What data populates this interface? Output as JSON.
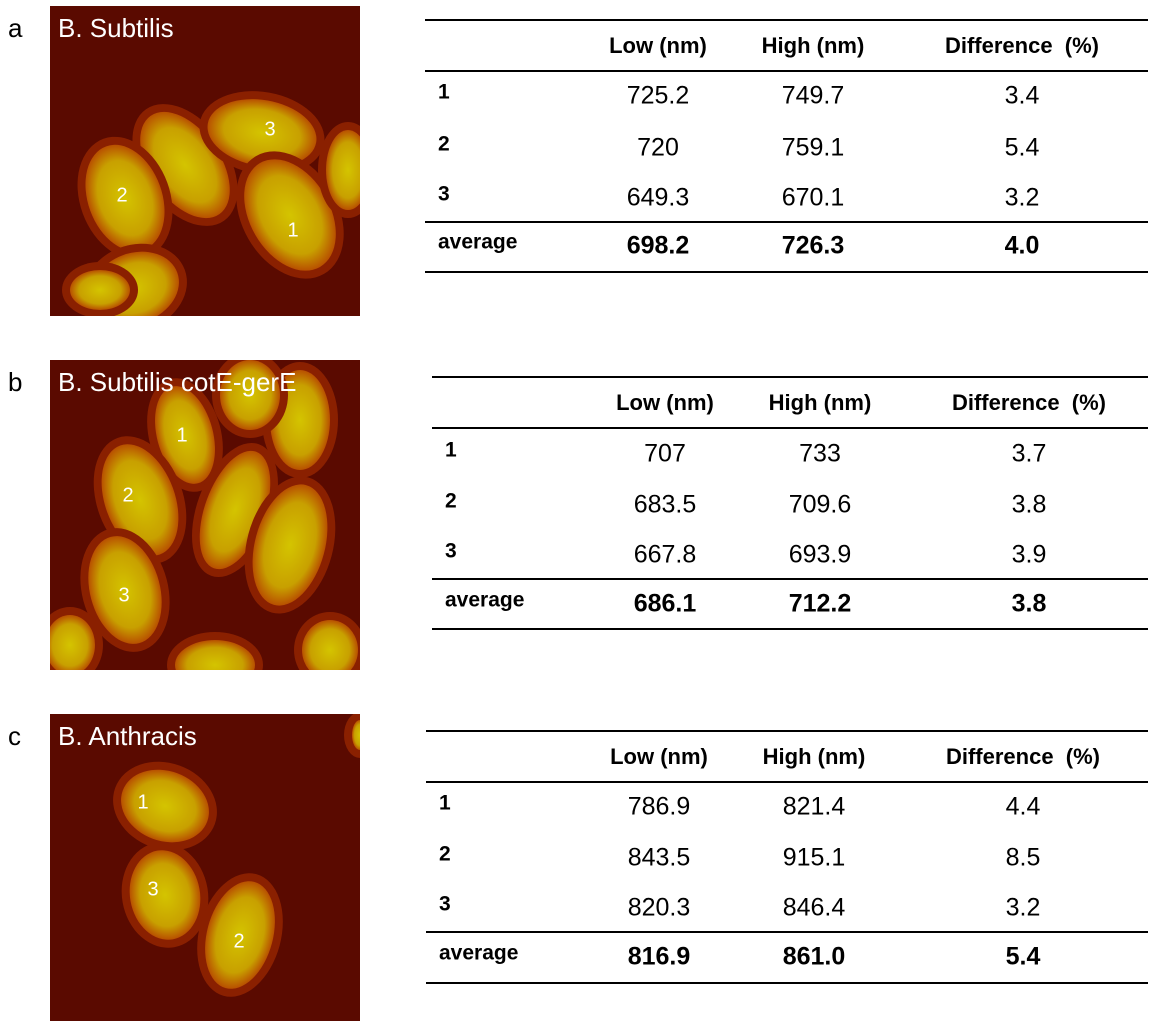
{
  "panels": [
    {
      "letter": "a",
      "title": "B. Subtilis",
      "spore_labels": [
        "3",
        "2",
        "1"
      ],
      "table": {
        "header": [
          "Low (nm)",
          "High (nm)",
          "Difference  (%)"
        ],
        "rows": [
          [
            "1",
            "725.2",
            "749.7",
            "3.4"
          ],
          [
            "2",
            "720",
            "759.1",
            "5.4"
          ],
          [
            "3",
            "649.3",
            "670.1",
            "3.2"
          ]
        ],
        "average": [
          "average",
          "698.2",
          "726.3",
          "4.0"
        ]
      }
    },
    {
      "letter": "b",
      "title": "B. Subtilis cotE-gerE",
      "spore_labels": [
        "1",
        "2",
        "3"
      ],
      "table": {
        "header": [
          "Low (nm)",
          "High (nm)",
          "Difference  (%)"
        ],
        "rows": [
          [
            "1",
            "707",
            "733",
            "3.7"
          ],
          [
            "2",
            "683.5",
            "709.6",
            "3.8"
          ],
          [
            "3",
            "667.8",
            "693.9",
            "3.9"
          ]
        ],
        "average": [
          "average",
          "686.1",
          "712.2",
          "3.8"
        ]
      }
    },
    {
      "letter": "c",
      "title": "B. Anthracis",
      "spore_labels": [
        "1",
        "3",
        "2"
      ],
      "table": {
        "header": [
          "Low (nm)",
          "High (nm)",
          "Difference  (%)"
        ],
        "rows": [
          [
            "1",
            "786.9",
            "821.4",
            "4.4"
          ],
          [
            "2",
            "843.5",
            "915.1",
            "8.5"
          ],
          [
            "3",
            "820.3",
            "846.4",
            "3.2"
          ]
        ],
        "average": [
          "average",
          "816.9",
          "861.0",
          "5.4"
        ]
      }
    }
  ]
}
